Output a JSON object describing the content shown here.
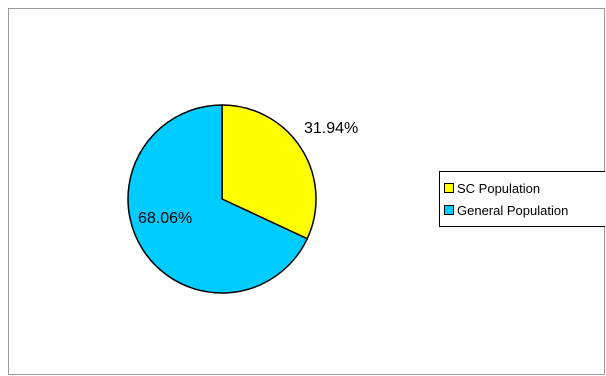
{
  "chart_data": {
    "type": "pie",
    "title": "",
    "categories": [
      "SC Population",
      "General Population"
    ],
    "values": [
      31.94,
      68.06
    ],
    "data_labels": [
      "31.94%",
      "68.06%"
    ],
    "colors": [
      "#ffff00",
      "#00ccff"
    ],
    "legend_position": "right",
    "start_angle": "12 o'clock, clockwise"
  },
  "legend": {
    "items": [
      {
        "label": "SC Population",
        "color": "#ffff00"
      },
      {
        "label": "General Population",
        "color": "#00ccff"
      }
    ]
  },
  "labels": {
    "slice_1": "31.94%",
    "slice_2": "68.06%"
  }
}
